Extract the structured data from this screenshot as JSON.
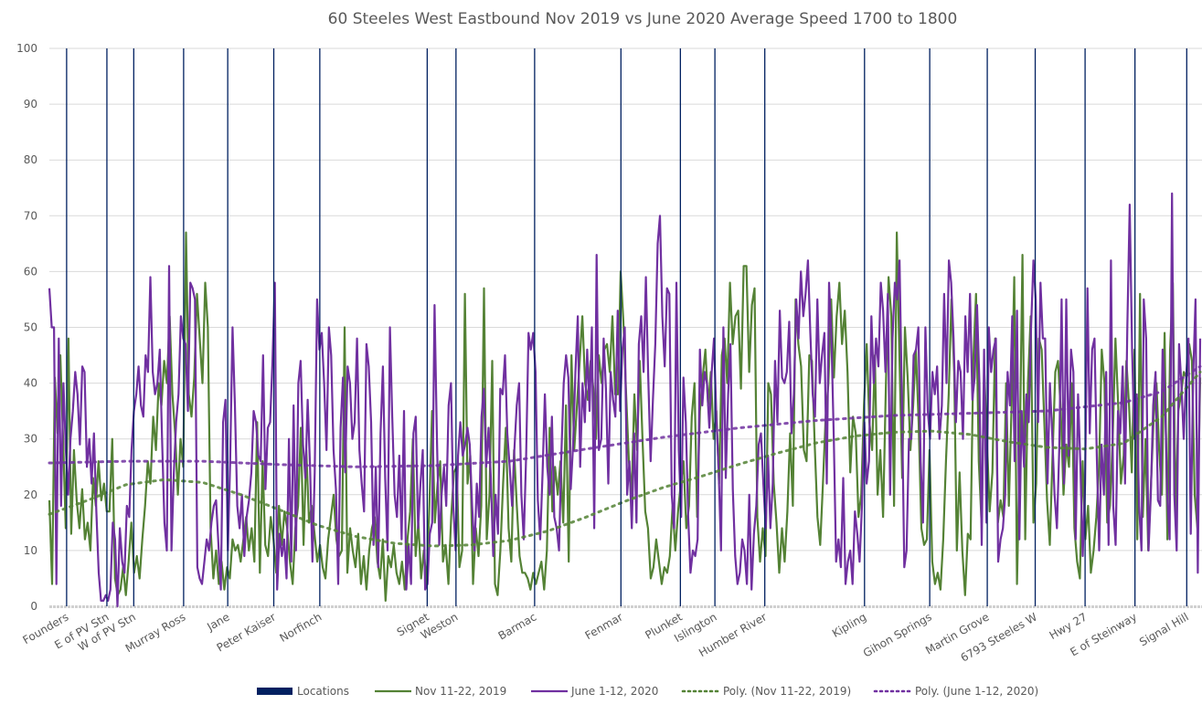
{
  "chart_data": {
    "type": "line",
    "title": "60 Steeles West Eastbound Nov 2019 vs June 2020 Average Speed 1700 to 1800",
    "xlabel": "",
    "ylabel": "",
    "ylim": [
      0,
      100
    ],
    "yticks": [
      0,
      10,
      20,
      30,
      40,
      50,
      60,
      70,
      80,
      90,
      100
    ],
    "xlim": [
      0,
      600
    ],
    "grid": true,
    "legend_position": "bottom",
    "colors": {
      "locations": "#002060",
      "nov": "#548235",
      "june": "#7030A0",
      "grid": "#d9d9d9",
      "text": "#595959"
    },
    "locations": [
      {
        "label": "Founders",
        "x": 9
      },
      {
        "label": "E of PV Stn",
        "x": 30
      },
      {
        "label": "W of PV Stn",
        "x": 44
      },
      {
        "label": "Murray Ross",
        "x": 70
      },
      {
        "label": "Jane",
        "x": 93
      },
      {
        "label": "Peter Kaiser",
        "x": 117
      },
      {
        "label": "Norfinch",
        "x": 141
      },
      {
        "label": "Signet",
        "x": 197
      },
      {
        "label": "Weston",
        "x": 212
      },
      {
        "label": "Barmac",
        "x": 253
      },
      {
        "label": "Fenmar",
        "x": 298
      },
      {
        "label": "Plunket",
        "x": 329
      },
      {
        "label": "Islington",
        "x": 347
      },
      {
        "label": "Humber River",
        "x": 373
      },
      {
        "label": "Kipling",
        "x": 425
      },
      {
        "label": "Gihon Springs",
        "x": 459
      },
      {
        "label": "Martin Grove",
        "x": 489
      },
      {
        "label": "6793 Steeles W",
        "x": 514
      },
      {
        "label": "Hwy 27",
        "x": 540
      },
      {
        "label": "E of Steinway",
        "x": 566
      },
      {
        "label": "Signal Hill",
        "x": 593
      }
    ],
    "series": [
      {
        "name": "Nov 11-22, 2019",
        "style": "solid",
        "x_step": 3,
        "values": [
          19,
          4,
          41,
          31,
          45,
          30,
          14,
          48,
          13,
          28,
          19,
          14,
          21,
          12,
          15,
          10,
          23,
          18,
          26,
          19,
          22,
          17,
          17,
          30,
          5,
          2,
          3,
          7,
          2,
          8,
          15,
          6,
          9,
          5,
          12,
          18,
          26,
          22,
          34,
          28,
          40,
          36,
          44,
          40,
          52,
          38,
          31,
          20,
          30,
          25,
          67,
          38,
          34,
          41,
          56,
          48,
          40,
          58,
          50,
          14,
          5,
          10,
          4,
          8,
          3,
          7,
          5,
          12,
          10,
          11,
          8,
          12,
          16,
          10,
          14,
          8,
          33,
          6,
          26,
          11,
          9,
          16,
          12,
          6,
          18,
          11,
          17,
          14,
          8,
          4,
          14,
          18,
          32,
          11,
          28,
          15,
          18,
          13,
          8,
          11,
          7,
          5,
          12,
          16,
          20,
          12,
          9,
          10,
          50,
          6,
          14,
          10,
          7,
          13,
          4,
          9,
          3,
          10,
          14,
          16,
          8,
          5,
          12,
          1,
          9,
          7,
          11,
          6,
          4,
          8,
          3,
          12,
          17,
          30,
          9,
          15,
          5,
          10,
          4,
          18,
          35,
          15,
          22,
          26,
          8,
          11,
          4,
          16,
          24,
          25,
          7,
          10,
          56,
          22,
          27,
          4,
          14,
          9,
          18,
          57,
          12,
          20,
          44,
          4,
          2,
          10,
          22,
          32,
          14,
          8,
          28,
          18,
          9,
          6,
          6,
          5,
          3,
          6,
          4,
          6,
          8,
          3,
          10,
          32,
          17,
          25,
          20,
          26,
          15,
          36,
          8,
          45,
          28,
          36,
          44,
          52,
          40,
          37,
          44,
          39,
          30,
          45,
          40,
          46,
          47,
          42,
          52,
          38,
          38,
          60,
          51,
          38,
          26,
          20,
          38,
          28,
          44,
          30,
          17,
          14,
          5,
          7,
          12,
          8,
          4,
          7,
          6,
          9,
          18,
          10,
          17,
          22,
          26,
          14,
          18,
          34,
          40,
          16,
          35,
          41,
          46,
          36,
          42,
          30,
          35,
          22,
          45,
          48,
          40,
          58,
          47,
          52,
          53,
          39,
          61,
          61,
          42,
          54,
          57,
          16,
          8,
          14,
          9,
          40,
          38,
          22,
          15,
          6,
          14,
          8,
          17,
          31,
          18,
          55,
          47,
          43,
          28,
          26,
          45,
          44,
          29,
          16,
          11,
          22,
          34,
          40,
          55,
          41,
          52,
          58,
          47,
          53,
          42,
          24,
          34,
          31,
          16,
          20,
          36,
          47,
          33,
          28,
          45,
          20,
          28,
          16,
          39,
          59,
          52,
          18,
          67,
          45,
          23,
          50,
          41,
          28,
          36,
          46,
          33,
          14,
          11,
          12,
          28,
          8,
          4,
          6,
          3,
          12,
          26,
          38,
          55,
          42,
          10,
          24,
          10,
          2,
          13,
          12,
          44,
          56,
          26,
          15,
          42,
          30,
          17,
          24,
          48,
          15,
          19,
          16,
          40,
          18,
          36,
          59,
          4,
          28,
          63,
          12,
          40,
          52,
          15,
          22,
          48,
          46,
          33,
          19,
          11,
          27,
          42,
          44,
          35,
          20,
          29,
          25,
          40,
          14,
          8,
          5,
          26,
          12,
          18,
          6,
          10,
          16,
          25,
          46,
          40,
          15,
          18,
          30,
          48,
          36,
          22,
          27,
          44,
          36,
          24,
          46,
          12,
          56,
          16,
          30,
          10,
          22,
          34,
          40,
          28,
          20,
          49,
          12,
          46,
          58,
          16,
          35,
          38,
          42,
          41,
          47,
          44,
          20,
          14,
          41
        ]
      },
      {
        "name": "June 1-12, 2020",
        "style": "solid",
        "x_step": 3,
        "values": [
          57,
          50,
          50,
          4,
          48,
          18,
          40,
          28,
          20,
          30,
          35,
          42,
          38,
          29,
          43,
          42,
          25,
          30,
          22,
          31,
          17,
          6,
          1,
          1,
          2,
          1,
          3,
          15,
          12,
          0,
          14,
          8,
          6,
          18,
          16,
          28,
          35,
          38,
          43,
          36,
          34,
          45,
          42,
          59,
          42,
          38,
          40,
          46,
          30,
          15,
          10,
          61,
          10,
          24,
          33,
          38,
          52,
          48,
          47,
          35,
          58,
          57,
          55,
          7,
          5,
          4,
          8,
          12,
          10,
          15,
          18,
          19,
          11,
          3,
          33,
          37,
          10,
          26,
          50,
          36,
          18,
          14,
          20,
          9,
          16,
          19,
          24,
          35,
          33,
          27,
          26,
          45,
          21,
          32,
          33,
          44,
          58,
          3,
          13,
          9,
          12,
          5,
          30,
          8,
          36,
          10,
          40,
          44,
          29,
          23,
          37,
          25,
          8,
          24,
          55,
          46,
          49,
          40,
          28,
          50,
          45,
          28,
          21,
          4,
          32,
          41,
          24,
          43,
          40,
          30,
          33,
          48,
          28,
          22,
          17,
          47,
          43,
          33,
          11,
          25,
          7,
          31,
          43,
          23,
          10,
          50,
          34,
          20,
          16,
          27,
          12,
          35,
          3,
          11,
          4,
          31,
          34,
          14,
          22,
          28,
          3,
          4,
          13,
          15,
          54,
          31,
          11,
          20,
          25,
          18,
          36,
          40,
          18,
          10,
          27,
          33,
          27,
          29,
          32,
          29,
          18,
          10,
          22,
          16,
          34,
          39,
          25,
          32,
          23,
          9,
          20,
          13,
          39,
          38,
          45,
          31,
          25,
          18,
          28,
          36,
          40,
          20,
          12,
          27,
          49,
          46,
          49,
          42,
          19,
          12,
          24,
          38,
          25,
          20,
          34,
          16,
          14,
          10,
          27,
          40,
          45,
          41,
          21,
          29,
          42,
          52,
          25,
          40,
          33,
          46,
          35,
          50,
          14,
          63,
          28,
          30,
          48,
          39,
          22,
          42,
          37,
          34,
          53,
          35,
          46,
          50,
          20,
          26,
          14,
          31,
          15,
          47,
          52,
          42,
          59,
          41,
          26,
          37,
          47,
          65,
          70,
          52,
          43,
          57,
          56,
          20,
          14,
          58,
          28,
          16,
          41,
          33,
          16,
          6,
          10,
          9,
          12,
          46,
          36,
          42,
          40,
          32,
          42,
          48,
          34,
          24,
          10,
          50,
          23,
          38,
          47,
          21,
          9,
          4,
          6,
          12,
          10,
          4,
          20,
          3,
          13,
          18,
          29,
          31,
          22,
          14,
          27,
          14,
          22,
          44,
          33,
          53,
          41,
          40,
          42,
          51,
          31,
          38,
          55,
          48,
          60,
          52,
          56,
          62,
          49,
          38,
          34,
          55,
          40,
          45,
          49,
          22,
          58,
          48,
          30,
          8,
          12,
          7,
          23,
          4,
          8,
          10,
          4,
          17,
          13,
          8,
          18,
          33,
          22,
          26,
          52,
          40,
          48,
          43,
          58,
          53,
          42,
          56,
          20,
          48,
          58,
          55,
          62,
          37,
          7,
          10,
          30,
          30,
          45,
          46,
          50,
          26,
          15,
          50,
          35,
          30,
          42,
          38,
          43,
          30,
          36,
          56,
          40,
          62,
          58,
          48,
          33,
          44,
          42,
          30,
          52,
          42,
          56,
          37,
          41,
          54,
          40,
          11,
          46,
          15,
          50,
          42,
          46,
          48,
          8,
          12,
          14,
          20,
          42,
          36,
          52,
          26,
          53,
          12,
          35,
          25,
          38,
          33,
          50,
          62,
          55,
          33,
          58,
          48,
          48,
          22,
          40,
          31,
          20,
          14,
          28,
          55,
          22,
          55,
          27,
          46,
          42,
          12,
          38,
          25,
          9,
          22,
          57,
          31,
          46,
          48,
          27,
          10,
          29,
          20,
          42,
          11,
          62,
          18,
          11,
          35,
          31,
          43,
          22,
          50,
          72,
          46,
          30,
          38,
          18,
          10,
          55,
          48,
          10,
          20,
          36,
          42,
          19,
          18,
          46,
          38,
          20,
          12,
          74,
          20,
          10,
          47,
          40,
          30,
          41,
          48,
          13,
          41,
          55,
          6,
          48
        ]
      },
      {
        "name": "Poly. (Nov 11-22, 2019)",
        "style": "dotted",
        "points": [
          [
            0,
            16.5
          ],
          [
            20,
            19
          ],
          [
            40,
            21.8
          ],
          [
            60,
            22.7
          ],
          [
            80,
            22.2
          ],
          [
            100,
            20
          ],
          [
            120,
            17.3
          ],
          [
            140,
            14.5
          ],
          [
            160,
            12.5
          ],
          [
            180,
            11.3
          ],
          [
            200,
            10.8
          ],
          [
            220,
            11
          ],
          [
            240,
            11.8
          ],
          [
            260,
            13.5
          ],
          [
            280,
            16
          ],
          [
            300,
            18.8
          ],
          [
            320,
            21.3
          ],
          [
            340,
            23.3
          ],
          [
            360,
            25.5
          ],
          [
            380,
            27.5
          ],
          [
            400,
            29.3
          ],
          [
            420,
            30.5
          ],
          [
            440,
            31.2
          ],
          [
            460,
            31.4
          ],
          [
            480,
            30.8
          ],
          [
            500,
            29.5
          ],
          [
            520,
            28.5
          ],
          [
            540,
            28.2
          ],
          [
            560,
            29.2
          ],
          [
            580,
            34
          ],
          [
            600,
            42
          ]
        ]
      },
      {
        "name": "Poly. (June 1-12, 2020)",
        "style": "dotted",
        "points": [
          [
            0,
            25.7
          ],
          [
            40,
            26
          ],
          [
            80,
            26
          ],
          [
            120,
            25.4
          ],
          [
            160,
            25
          ],
          [
            200,
            25.2
          ],
          [
            240,
            26
          ],
          [
            280,
            28.2
          ],
          [
            320,
            30.3
          ],
          [
            360,
            32
          ],
          [
            400,
            33.3
          ],
          [
            440,
            34.2
          ],
          [
            480,
            34.6
          ],
          [
            520,
            35
          ],
          [
            560,
            36.5
          ],
          [
            580,
            38.5
          ],
          [
            600,
            43
          ]
        ]
      }
    ],
    "legend": [
      {
        "label": "Locations",
        "kind": "bar"
      },
      {
        "label": "Nov 11-22, 2019",
        "kind": "line-nov"
      },
      {
        "label": "June 1-12, 2020",
        "kind": "line-june"
      },
      {
        "label": "Poly. (Nov 11-22, 2019)",
        "kind": "dot-nov"
      },
      {
        "label": "Poly. (June 1-12, 2020)",
        "kind": "dot-june"
      }
    ]
  }
}
